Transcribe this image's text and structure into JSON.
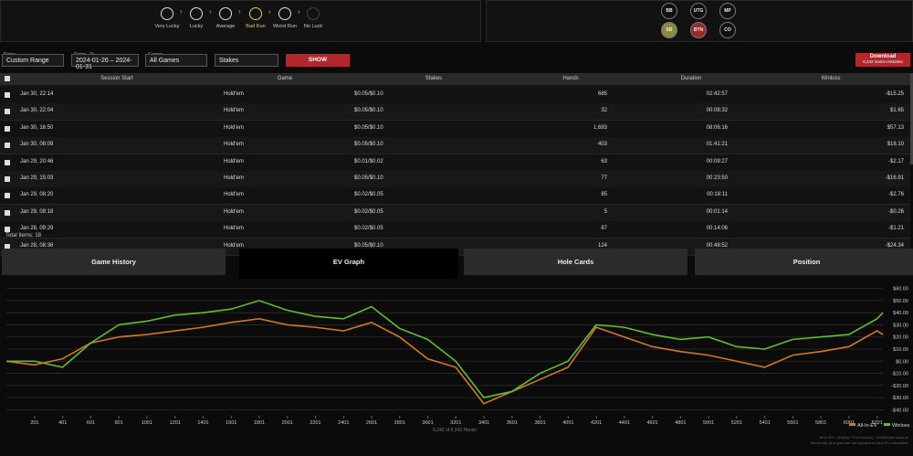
{
  "luck_levels": [
    "Very Lucky",
    "Lucky",
    "Average",
    "Bad Run",
    "Worst Run",
    "No Luck"
  ],
  "positions": [
    "BB",
    "UTG",
    "MP",
    "SB",
    "BTN",
    "CO"
  ],
  "filters": {
    "dates_label": "Dates",
    "dates_value": "Custom Range",
    "range_label": "Dates - To",
    "range_value": "2024-01-26 – 2024-01-31",
    "games_label": "Games",
    "games_value": "All Games",
    "stakes_value": "Stakes",
    "show": "SHOW",
    "download": "Download",
    "download_sub": "6,242 Game Histories"
  },
  "table": {
    "columns": [
      "Session Start",
      "Game",
      "Stakes",
      "Hands",
      "Duration",
      "Winloss"
    ],
    "rows": [
      [
        "Jan 30, 22:14",
        "Hold'em",
        "$0.05/$0.10",
        "685",
        "02:42:57",
        "-$15.25"
      ],
      [
        "Jan 30, 22:04",
        "Hold'em",
        "$0.05/$0.10",
        "32",
        "00:08:32",
        "$1.65"
      ],
      [
        "Jan 30, 16:50",
        "Hold'em",
        "$0.05/$0.10",
        "1,693",
        "08:06:16",
        "$57.13"
      ],
      [
        "Jan 30, 08:09",
        "Hold'em",
        "$0.05/$0.10",
        "403",
        "01:41:21",
        "$18.10"
      ],
      [
        "Jan 29, 20:46",
        "Hold'em",
        "$0.01/$0.02",
        "63",
        "00:09:27",
        "-$2.17"
      ],
      [
        "Jan 29, 15:03",
        "Hold'em",
        "$0.05/$0.10",
        "77",
        "00:23:50",
        "-$16.91"
      ],
      [
        "Jan 29, 08:20",
        "Hold'em",
        "$0.02/$0.05",
        "85",
        "00:18:11",
        "-$2.76"
      ],
      [
        "Jan 29, 08:18",
        "Hold'em",
        "$0.02/$0.05",
        "5",
        "00:01:14",
        "-$0.26"
      ],
      [
        "Jan 28, 09:29",
        "Hold'em",
        "$0.02/$0.05",
        "87",
        "00:14:06",
        "-$1.21"
      ],
      [
        "Jan 28, 08:36",
        "Hold'em",
        "$0.05/$0.10",
        "124",
        "00:48:52",
        "-$24.34"
      ]
    ],
    "total": "Total Items: 18"
  },
  "tabs": [
    "Game History",
    "EV Graph",
    "Hole Cards",
    "Position"
  ],
  "ev_graph": {
    "type": "line",
    "x": [
      0,
      200,
      400,
      600,
      800,
      1000,
      1200,
      1400,
      1600,
      1800,
      2000,
      2200,
      2400,
      2600,
      2800,
      3000,
      3200,
      3400,
      3600,
      3800,
      4000,
      4200,
      4400,
      4600,
      4800,
      5000,
      5200,
      5400,
      5600,
      5800,
      6000,
      6200,
      6242
    ],
    "series": [
      {
        "name": "All-In-EV",
        "color": "#d2781e",
        "values": [
          0,
          -3,
          2,
          15,
          20,
          22,
          25,
          28,
          32,
          35,
          30,
          28,
          25,
          32,
          20,
          2,
          -5,
          -35,
          -25,
          -15,
          -5,
          28,
          20,
          12,
          8,
          5,
          0,
          -5,
          5,
          8,
          12,
          25,
          22
        ]
      },
      {
        "name": "Winloss",
        "color": "#5fbf2a",
        "values": [
          0,
          0,
          -5,
          15,
          30,
          33,
          38,
          40,
          43,
          50,
          42,
          37,
          35,
          45,
          27,
          18,
          0,
          -30,
          -25,
          -10,
          0,
          30,
          28,
          22,
          18,
          20,
          12,
          10,
          18,
          20,
          22,
          35,
          40
        ]
      }
    ],
    "xlim": [
      0,
      6242
    ],
    "xticks": [
      201,
      401,
      601,
      801,
      1001,
      1201,
      1401,
      1601,
      1801,
      2001,
      2201,
      2401,
      2601,
      2801,
      3001,
      3201,
      3401,
      3601,
      3801,
      4001,
      4201,
      4401,
      4601,
      4801,
      5001,
      5201,
      5401,
      5601,
      5801,
      6001,
      6201
    ],
    "ylim": [
      -45,
      65
    ],
    "yticks": [
      {
        "value": 60,
        "label": "$60.00"
      },
      {
        "value": 50,
        "label": "$50.00"
      },
      {
        "value": 40,
        "label": "$40.00"
      },
      {
        "value": 30,
        "label": "$30.00"
      },
      {
        "value": 20,
        "label": "$20.00"
      },
      {
        "value": 10,
        "label": "$10.00"
      },
      {
        "value": 0,
        "label": "$0.00"
      },
      {
        "value": -10,
        "label": "-$10.00"
      },
      {
        "value": -20,
        "label": "-$20.00"
      },
      {
        "value": -30,
        "label": "-$30.00"
      },
      {
        "value": -40,
        "label": "-$40.00"
      }
    ],
    "grid": true,
    "legend": "bottom-right",
    "hands_label": "6,242 of 6,242 Hands",
    "notes": [
      "All-In-EV = (Equity * Pot Amount) - Contributed Amount",
      "Worst way all-in pots are not included in All-In-EV calculation"
    ]
  }
}
